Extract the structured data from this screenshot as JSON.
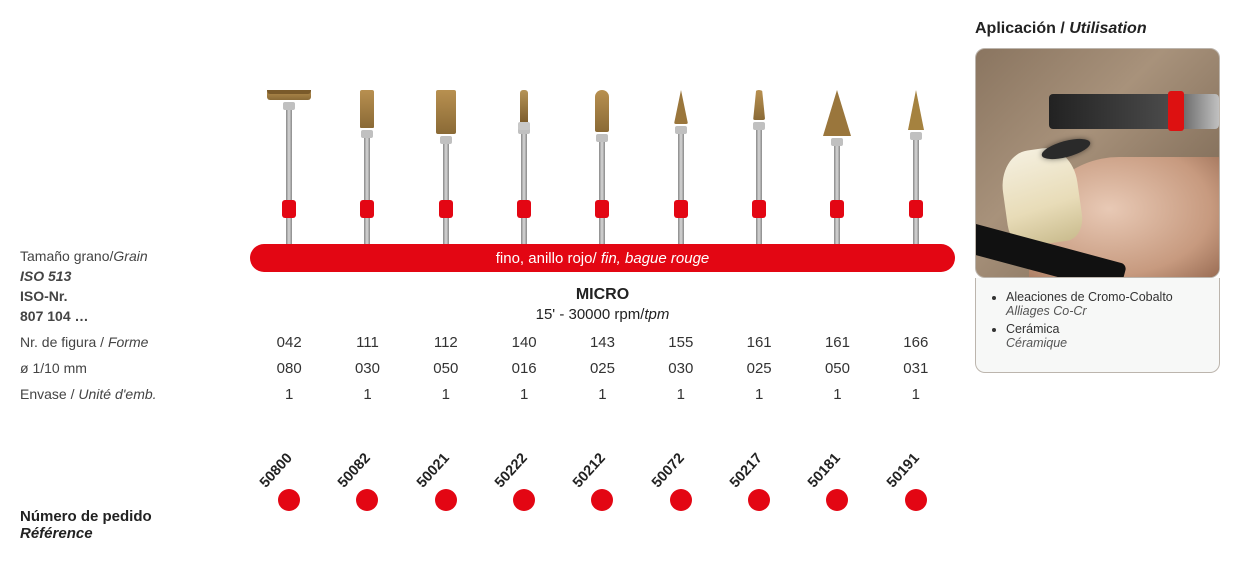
{
  "colors": {
    "accent": "#e30613",
    "text": "#333333",
    "shaft": "#c0c0c0",
    "tip": "#9a763c",
    "bg": "#ffffff"
  },
  "leftLabels": {
    "grain": {
      "es": "Tamaño grano/",
      "alt": "Grain"
    },
    "iso": "ISO 513",
    "isoNr_label": "ISO-Nr.",
    "isoNr_value": "807 104 …",
    "form": {
      "es": "Nr. de figura / ",
      "alt": "Forme"
    },
    "diam": "ø 1/10 mm",
    "pack": {
      "es": "Envase / ",
      "alt": "Unité d'emb."
    },
    "order": {
      "es": "Número de pedido",
      "alt": "Référence"
    }
  },
  "redBar": {
    "es": "fino, anillo rojo/ ",
    "alt": "fin, bague rouge"
  },
  "series": "MICRO",
  "rpm": {
    "prefix": "15' - 30000 rpm/",
    "alt": "tpm"
  },
  "columns": [
    {
      "tip": "disc",
      "form": "042",
      "diam": "080",
      "pack": "1",
      "order": "50800"
    },
    {
      "tip": "cyl-s",
      "form": "111",
      "diam": "030",
      "pack": "1",
      "order": "50082"
    },
    {
      "tip": "cyl-m",
      "form": "112",
      "diam": "050",
      "pack": "1",
      "order": "50021"
    },
    {
      "tip": "needle",
      "form": "140",
      "diam": "016",
      "pack": "1",
      "order": "50222"
    },
    {
      "tip": "bullet",
      "form": "143",
      "diam": "025",
      "pack": "1",
      "order": "50212"
    },
    {
      "tip": "taper-s",
      "form": "155",
      "diam": "030",
      "pack": "1",
      "order": "50072"
    },
    {
      "tip": "taper-round",
      "form": "161",
      "diam": "025",
      "pack": "1",
      "order": "50217"
    },
    {
      "tip": "cone-b",
      "form": "161",
      "diam": "050",
      "pack": "1",
      "order": "50181"
    },
    {
      "tip": "cone-sharp",
      "form": "166",
      "diam": "031",
      "pack": "1",
      "order": "50191"
    }
  ],
  "application": {
    "title_es": "Aplicación",
    "title_sep": " / ",
    "title_alt": "Utilisation",
    "items": [
      {
        "es": "Aleaciones de Cromo-Cobalto",
        "alt": "Alliages Co-Cr"
      },
      {
        "es": "Cerámica",
        "alt": "Céramique"
      }
    ]
  }
}
